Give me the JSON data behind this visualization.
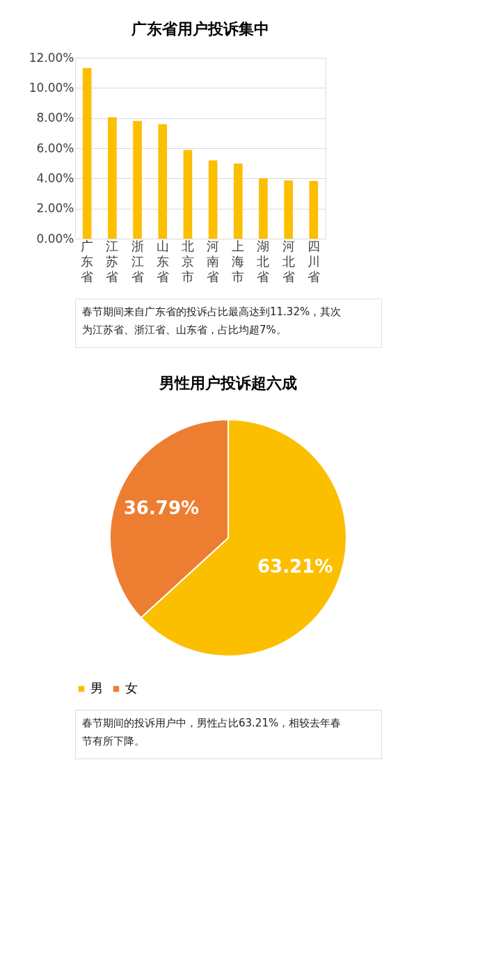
{
  "chart_data": [
    {
      "type": "bar",
      "title": "广东省用户投诉集中",
      "categories": [
        "广东省",
        "江苏省",
        "浙江省",
        "山东省",
        "北京市",
        "河南省",
        "上海市",
        "湖北省",
        "河北省",
        "四川省"
      ],
      "values": [
        11.32,
        8.05,
        7.81,
        7.59,
        5.89,
        5.19,
        4.99,
        4.02,
        3.86,
        3.83
      ],
      "color": "#fbbf00",
      "ylim": [
        0,
        12
      ],
      "yticks": [
        {
          "value": 0,
          "label": "0.00%"
        },
        {
          "value": 2,
          "label": "2.00%"
        },
        {
          "value": 4,
          "label": "4.00%"
        },
        {
          "value": 6,
          "label": "6.00%"
        },
        {
          "value": 8,
          "label": "8.00%"
        },
        {
          "value": 10,
          "label": "10.00%"
        },
        {
          "value": 12,
          "label": "12.00%"
        }
      ],
      "grid": "y",
      "annotations": [
        "春节期间来自广东省的投诉占比最高达到11.32%，其次为江苏省、浙江省、山东省，占比均超7%。"
      ]
    },
    {
      "type": "pie",
      "title": "男性用户投诉超六成",
      "categories": [
        "男",
        "女"
      ],
      "values": [
        63.21,
        36.79
      ],
      "colors": [
        "#fbbf00",
        "#ed7d31"
      ],
      "value_labels": [
        "63.21%",
        "36.79%"
      ],
      "legend": "bottom",
      "annotations": [
        "春节期间的投诉用户中，男性占比63.21%，相较去年春节有所下降。"
      ]
    }
  ]
}
